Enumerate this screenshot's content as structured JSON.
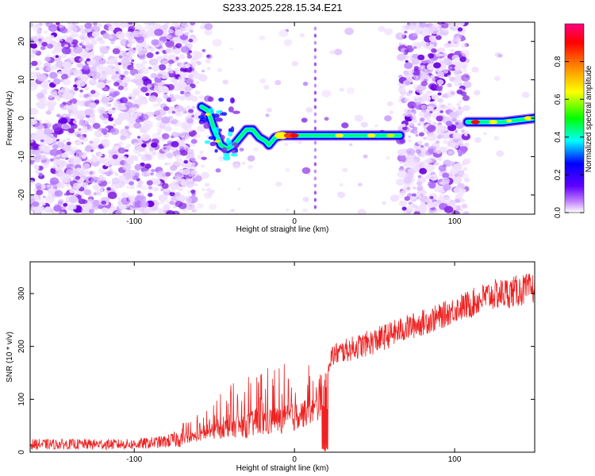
{
  "title": "S233.2025.228.15.34.E21",
  "colors": {
    "snr_line": "#ee2222",
    "colormap": [
      "#ffffff",
      "#e8c8ff",
      "#8a2be2",
      "#0000ff",
      "#00ffff",
      "#00ff00",
      "#ffff00",
      "#ff8000",
      "#ff0000",
      "#ff0080"
    ]
  },
  "chart_data": [
    {
      "type": "heatmap",
      "xlabel": "Height of straight line (km)",
      "ylabel": "Frequency (Hz)",
      "xlim": [
        -165,
        150
      ],
      "ylim": [
        -25,
        25
      ],
      "x_ticks": [
        -100,
        0,
        100
      ],
      "y_ticks": [
        20,
        10,
        0,
        -10,
        -20
      ],
      "x_tick_labels": [
        "-100",
        "0",
        "100"
      ],
      "y_tick_labels": [
        "20",
        "10",
        "0",
        "-10",
        "-20"
      ],
      "noise_regions": [
        [
          -165,
          -62
        ],
        [
          66,
          108
        ]
      ],
      "faint_noise_regions": [
        [
          -62,
          -50
        ]
      ],
      "vertical_streak_x": 13,
      "carrier_trace": [
        {
          "x": -58,
          "y": 3
        },
        {
          "x": -54,
          "y": 2
        },
        {
          "x": -50,
          "y": -3
        },
        {
          "x": -46,
          "y": -7
        },
        {
          "x": -42,
          "y": -8
        },
        {
          "x": -38,
          "y": -7
        },
        {
          "x": -34,
          "y": -5
        },
        {
          "x": -30,
          "y": -3
        },
        {
          "x": -26,
          "y": -3
        },
        {
          "x": -22,
          "y": -5
        },
        {
          "x": -18,
          "y": -6
        },
        {
          "x": -16,
          "y": -7
        },
        {
          "x": -12,
          "y": -5
        },
        {
          "x": -8,
          "y": -4.5
        },
        {
          "x": -4,
          "y": -4.5
        },
        {
          "x": 0,
          "y": -4.5
        },
        {
          "x": 4,
          "y": -4.5
        },
        {
          "x": 12,
          "y": -4.5
        },
        {
          "x": 20,
          "y": -4.5
        },
        {
          "x": 30,
          "y": -4.5
        },
        {
          "x": 40,
          "y": -4.5
        },
        {
          "x": 50,
          "y": -4.5
        },
        {
          "x": 60,
          "y": -4.5
        },
        {
          "x": 66,
          "y": -4.5
        }
      ],
      "carrier_segment_2": [
        {
          "x": 108,
          "y": -1
        },
        {
          "x": 130,
          "y": -1
        },
        {
          "x": 150,
          "y": 0
        }
      ],
      "colorbar": {
        "label": "Normalized spectral amplitude",
        "range": [
          0,
          1
        ],
        "ticks": [
          0.0,
          0.2,
          0.4,
          0.6,
          0.8
        ],
        "tick_labels": [
          "0.0",
          "0.2",
          "0.4",
          "0.6",
          "0.8"
        ]
      }
    },
    {
      "type": "line",
      "xlabel": "Height of straight line (km)",
      "ylabel": "SNR (10 * v/v)",
      "xlim": [
        -165,
        150
      ],
      "ylim": [
        0,
        360
      ],
      "x_ticks": [
        -100,
        0,
        100
      ],
      "y_ticks": [
        0,
        100,
        200,
        300
      ],
      "x_tick_labels": [
        "-100",
        "0",
        "100"
      ],
      "y_tick_labels": [
        "0",
        "100",
        "200",
        "300"
      ],
      "envelope": {
        "x": [
          -165,
          -100,
          -80,
          -60,
          -50,
          -40,
          -30,
          -20,
          -10,
          0,
          10,
          15,
          20,
          25,
          30,
          50,
          70,
          90,
          100,
          110,
          120,
          130,
          150
        ],
        "mean": [
          15,
          15,
          20,
          35,
          45,
          55,
          60,
          65,
          70,
          75,
          85,
          90,
          170,
          185,
          190,
          210,
          235,
          255,
          270,
          280,
          295,
          300,
          310
        ],
        "spread": [
          10,
          10,
          12,
          25,
          35,
          45,
          55,
          60,
          60,
          60,
          55,
          50,
          25,
          22,
          22,
          25,
          25,
          25,
          25,
          28,
          28,
          30,
          30
        ]
      },
      "dropout_x": [
        17,
        21
      ]
    }
  ]
}
